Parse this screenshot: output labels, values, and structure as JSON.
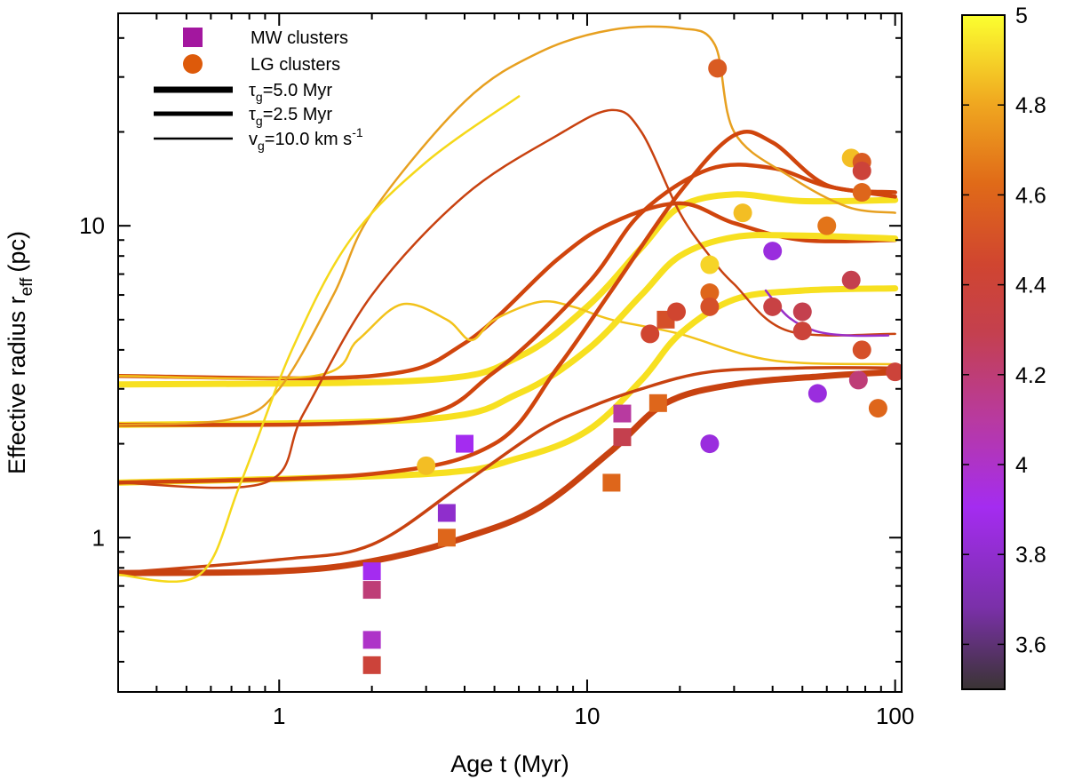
{
  "chart_data": {
    "type": "scatter",
    "xlabel": "Age t (Myr)",
    "ylabel": "Effective radius r",
    "ylabel_sub": "eff",
    "ylabel_unit": "(pc)",
    "xscale": "log",
    "yscale": "log",
    "xlim": [
      0.3,
      105
    ],
    "ylim": [
      0.32,
      48
    ],
    "x_ticks": [
      {
        "value": 1,
        "label": "1"
      },
      {
        "value": 10,
        "label": "10"
      },
      {
        "value": 100,
        "label": "100"
      }
    ],
    "y_ticks": [
      {
        "value": 1,
        "label": "1"
      },
      {
        "value": 10,
        "label": "10"
      }
    ],
    "colorbar": {
      "range": [
        3.5,
        5.0
      ],
      "ticks": [
        {
          "value": 5.0,
          "label": "5"
        },
        {
          "value": 4.8,
          "label": "4.8"
        },
        {
          "value": 4.6,
          "label": "4.6"
        },
        {
          "value": 4.4,
          "label": "4.4"
        },
        {
          "value": 4.2,
          "label": "4.2"
        },
        {
          "value": 4.0,
          "label": "4"
        },
        {
          "value": 3.8,
          "label": "3.8"
        },
        {
          "value": 3.6,
          "label": "3.6"
        }
      ]
    },
    "legend": {
      "position": "top-left",
      "entries": [
        {
          "kind": "square",
          "label": "MW clusters",
          "color": "#a3179f"
        },
        {
          "kind": "circle",
          "label": "LG clusters",
          "color": "#dd5a0a"
        },
        {
          "kind": "line",
          "width": 7,
          "tau": "τ",
          "sub": "g",
          "rest": "=5.0 Myr"
        },
        {
          "kind": "line",
          "width": 5,
          "tau": "τ",
          "sub": "g",
          "rest": "=2.5 Myr"
        },
        {
          "kind": "line",
          "width": 2.5,
          "tau": "v",
          "sub": "g",
          "rest": "=10.0 km s",
          "sup": "-1"
        }
      ]
    },
    "series": [
      {
        "name": "hi-tau5",
        "width": 7,
        "color": "#f7e020",
        "points": [
          [
            0.3,
            3.1
          ],
          [
            3,
            3.2
          ],
          [
            6,
            3.8
          ],
          [
            10,
            5.5
          ],
          [
            15,
            8.5
          ],
          [
            20,
            11.5
          ],
          [
            30,
            12.6
          ],
          [
            50,
            12.0
          ],
          [
            100,
            12.1
          ]
        ]
      },
      {
        "name": "hi-tau2.5",
        "width": 4.5,
        "color": "#d0450d",
        "points": [
          [
            0.3,
            3.3
          ],
          [
            2,
            3.3
          ],
          [
            4,
            4.2
          ],
          [
            8,
            7.8
          ],
          [
            12,
            10.2
          ],
          [
            20,
            11.8
          ],
          [
            30,
            10.2
          ],
          [
            50,
            9.0
          ],
          [
            100,
            9.0
          ]
        ]
      },
      {
        "name": "hi-v10",
        "width": 2.5,
        "color": "#f2c21a",
        "points": [
          [
            0.3,
            3.3
          ],
          [
            1.3,
            3.3
          ],
          [
            1.8,
            4.3
          ],
          [
            2.5,
            5.6
          ],
          [
            3.5,
            5.0
          ],
          [
            4.2,
            4.3
          ],
          [
            5,
            5.0
          ],
          [
            7,
            5.7
          ],
          [
            9,
            5.5
          ],
          [
            12,
            5.0
          ],
          [
            20,
            4.5
          ],
          [
            40,
            3.7
          ],
          [
            100,
            3.6
          ]
        ]
      },
      {
        "name": "mid-tau5",
        "width": 7,
        "color": "#f7e020",
        "points": [
          [
            0.3,
            2.3
          ],
          [
            3,
            2.4
          ],
          [
            6,
            2.9
          ],
          [
            10,
            4.0
          ],
          [
            15,
            6.0
          ],
          [
            20,
            8.0
          ],
          [
            30,
            9.2
          ],
          [
            50,
            9.3
          ],
          [
            100,
            9.1
          ]
        ]
      },
      {
        "name": "mid-tau2.5",
        "width": 4.5,
        "color": "#d0450d",
        "points": [
          [
            0.3,
            2.3
          ],
          [
            2.5,
            2.4
          ],
          [
            5,
            3.4
          ],
          [
            10,
            6.5
          ],
          [
            15,
            11.0
          ],
          [
            25,
            15.2
          ],
          [
            40,
            15.3
          ],
          [
            60,
            13.4
          ],
          [
            100,
            12.4
          ]
        ]
      },
      {
        "name": "mid-v10",
        "width": 2.5,
        "color": "#e7a020",
        "points": [
          [
            0.3,
            2.3
          ],
          [
            0.7,
            2.4
          ],
          [
            1,
            3.0
          ],
          [
            1.5,
            6.0
          ],
          [
            2,
            11.0
          ],
          [
            4,
            25.0
          ],
          [
            7,
            36.0
          ],
          [
            12,
            42.5
          ],
          [
            20,
            43.0
          ],
          [
            26,
            38.0
          ],
          [
            30,
            20.0
          ],
          [
            45,
            14.5
          ],
          [
            70,
            11.5
          ],
          [
            100,
            11.0
          ]
        ]
      },
      {
        "name": "lo-tau5",
        "width": 7,
        "color": "#f7e020",
        "points": [
          [
            0.3,
            1.5
          ],
          [
            3,
            1.6
          ],
          [
            6,
            1.8
          ],
          [
            10,
            2.2
          ],
          [
            15,
            3.2
          ],
          [
            20,
            4.5
          ],
          [
            30,
            5.8
          ],
          [
            50,
            6.2
          ],
          [
            100,
            6.3
          ]
        ]
      },
      {
        "name": "lo-tau2.5",
        "width": 4.5,
        "color": "#d0450d",
        "points": [
          [
            0.3,
            1.5
          ],
          [
            2,
            1.6
          ],
          [
            5,
            2.0
          ],
          [
            8,
            3.5
          ],
          [
            12,
            6.2
          ],
          [
            20,
            12.8
          ],
          [
            30,
            19.5
          ],
          [
            40,
            18.5
          ],
          [
            60,
            13.5
          ],
          [
            100,
            12.8
          ]
        ]
      },
      {
        "name": "lo-v10",
        "width": 2.5,
        "color": "#c84210",
        "points": [
          [
            0.3,
            1.5
          ],
          [
            0.9,
            1.5
          ],
          [
            1.2,
            2.5
          ],
          [
            2,
            6.0
          ],
          [
            4,
            12.5
          ],
          [
            8,
            19.5
          ],
          [
            12,
            23.5
          ],
          [
            15,
            20.0
          ],
          [
            20,
            11.0
          ],
          [
            25,
            8.0
          ],
          [
            30,
            6.5
          ],
          [
            45,
            4.6
          ],
          [
            100,
            4.5
          ]
        ]
      },
      {
        "name": "xlo-tau5",
        "width": 7,
        "color": "#c84210",
        "points": [
          [
            0.3,
            0.77
          ],
          [
            1,
            0.78
          ],
          [
            2,
            0.84
          ],
          [
            4,
            1.0
          ],
          [
            7,
            1.25
          ],
          [
            12,
            1.9
          ],
          [
            18,
            2.7
          ],
          [
            30,
            3.1
          ],
          [
            60,
            3.3
          ],
          [
            100,
            3.4
          ]
        ]
      },
      {
        "name": "xlo-tau2.5",
        "width": 3.5,
        "color": "#c84210",
        "points": [
          [
            0.3,
            0.77
          ],
          [
            1,
            0.85
          ],
          [
            2,
            0.95
          ],
          [
            4,
            1.5
          ],
          [
            7,
            2.2
          ],
          [
            10,
            2.6
          ],
          [
            15,
            3.0
          ],
          [
            25,
            3.4
          ],
          [
            50,
            3.5
          ],
          [
            100,
            3.5
          ]
        ]
      },
      {
        "name": "xlo-v10",
        "width": 2.5,
        "color": "#f5d81a",
        "points": [
          [
            0.3,
            0.76
          ],
          [
            0.55,
            0.76
          ],
          [
            0.75,
            1.5
          ],
          [
            1.1,
            4.0
          ],
          [
            1.7,
            9.0
          ],
          [
            3,
            16.0
          ],
          [
            6,
            26.0
          ]
        ]
      }
    ],
    "mw_clusters": [
      {
        "x": 2.0,
        "y": 0.78,
        "c": 3.9
      },
      {
        "x": 2.0,
        "y": 0.68,
        "c": 4.2
      },
      {
        "x": 2.0,
        "y": 0.47,
        "c": 4.0
      },
      {
        "x": 2.0,
        "y": 0.39,
        "c": 4.4
      },
      {
        "x": 3.5,
        "y": 1.2,
        "c": 3.8
      },
      {
        "x": 3.5,
        "y": 1.0,
        "c": 4.6
      },
      {
        "x": 4.0,
        "y": 2.0,
        "c": 3.9
      },
      {
        "x": 12.0,
        "y": 1.5,
        "c": 4.6
      },
      {
        "x": 13.0,
        "y": 2.5,
        "c": 4.1
      },
      {
        "x": 13.0,
        "y": 2.1,
        "c": 4.3
      },
      {
        "x": 17.0,
        "y": 2.7,
        "c": 4.6
      },
      {
        "x": 18.0,
        "y": 5.0,
        "c": 4.5
      }
    ],
    "lg_clusters": [
      {
        "x": 3.0,
        "y": 1.7,
        "c": 4.85
      },
      {
        "x": 16.0,
        "y": 4.5,
        "c": 4.45
      },
      {
        "x": 19.5,
        "y": 5.3,
        "c": 4.45
      },
      {
        "x": 25.0,
        "y": 7.5,
        "c": 4.9
      },
      {
        "x": 25.0,
        "y": 6.1,
        "c": 4.6
      },
      {
        "x": 25.0,
        "y": 5.5,
        "c": 4.5
      },
      {
        "x": 25.0,
        "y": 2.0,
        "c": 3.85
      },
      {
        "x": 26.5,
        "y": 32.0,
        "c": 4.55
      },
      {
        "x": 32.0,
        "y": 11.0,
        "c": 4.85
      },
      {
        "x": 40.0,
        "y": 8.3,
        "c": 3.85
      },
      {
        "x": 40.0,
        "y": 5.5,
        "c": 4.35
      },
      {
        "x": 50.0,
        "y": 5.3,
        "c": 4.3
      },
      {
        "x": 50.0,
        "y": 4.6,
        "c": 4.4
      },
      {
        "x": 56.0,
        "y": 2.9,
        "c": 3.85
      },
      {
        "x": 60.0,
        "y": 10.0,
        "c": 4.65
      },
      {
        "x": 72.0,
        "y": 6.7,
        "c": 4.3
      },
      {
        "x": 72.0,
        "y": 16.5,
        "c": 4.85
      },
      {
        "x": 76.0,
        "y": 3.2,
        "c": 4.2
      },
      {
        "x": 78.0,
        "y": 16.0,
        "c": 4.55
      },
      {
        "x": 78.0,
        "y": 15.0,
        "c": 4.4
      },
      {
        "x": 78.0,
        "y": 12.8,
        "c": 4.6
      },
      {
        "x": 78.0,
        "y": 4.0,
        "c": 4.5
      },
      {
        "x": 88.0,
        "y": 2.6,
        "c": 4.6
      },
      {
        "x": 100.0,
        "y": 3.4,
        "c": 4.4
      }
    ],
    "purple_tail": {
      "width": 2.5,
      "color": "#9a30c8",
      "points": [
        [
          38,
          6.2
        ],
        [
          45,
          5.1
        ],
        [
          55,
          4.6
        ],
        [
          70,
          4.45
        ],
        [
          95,
          4.45
        ]
      ]
    }
  }
}
